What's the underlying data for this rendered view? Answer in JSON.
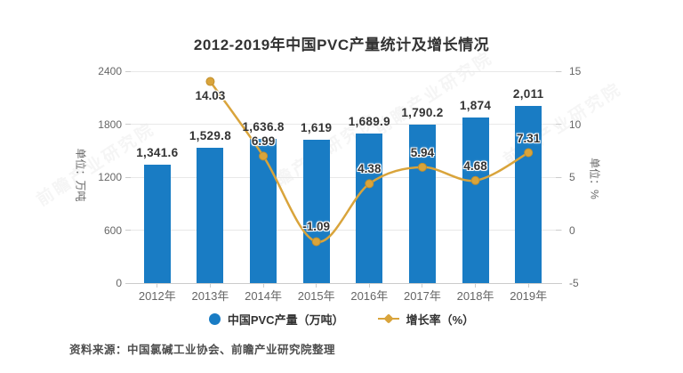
{
  "title": "2012-2019年中国PVC产量统计及增长情况",
  "source": "资料来源：中国氯碱工业协会、前瞻产业研究院整理",
  "watermark": "前瞻产业研究院",
  "colors": {
    "bar": "#197cc4",
    "line": "#d9a43b",
    "line_marker_stroke": "#c28f2c",
    "gridline": "#e8e8e8",
    "axis_line": "#cccccc",
    "label_text": "#333333",
    "tick_text": "#666666"
  },
  "chart_data": {
    "type": "bar",
    "subtype": "bar-line-combo",
    "categories": [
      "2012年",
      "2013年",
      "2014年",
      "2015年",
      "2016年",
      "2017年",
      "2018年",
      "2019年"
    ],
    "series": [
      {
        "name": "中国PVC产量（万吨）",
        "type": "bar",
        "axis": "left",
        "color": "#197cc4",
        "values": [
          1341.6,
          1529.8,
          1636.8,
          1619,
          1689.9,
          1790.2,
          1874,
          2011
        ],
        "labels": [
          "1,341.6",
          "1,529.8",
          "1,636.8",
          "1,619",
          "1,689.9",
          "1,790.2",
          "1,874",
          "2,011"
        ]
      },
      {
        "name": "增长率（%）",
        "type": "line",
        "axis": "right",
        "color": "#d9a43b",
        "values": [
          null,
          14.03,
          6.99,
          -1.09,
          4.38,
          5.94,
          4.68,
          7.31
        ],
        "labels": [
          null,
          "14.03",
          "6.99",
          "-1.09",
          "4.38",
          "5.94",
          "4.68",
          "7.31"
        ]
      }
    ],
    "left_axis": {
      "label": "单位：万吨",
      "min": 0,
      "max": 2400,
      "ticks": [
        0,
        600,
        1200,
        1800,
        2400
      ]
    },
    "right_axis": {
      "label": "单位：%",
      "min": -5,
      "max": 15,
      "ticks": [
        -5,
        0,
        5,
        10,
        15
      ]
    },
    "grid": "horizontal",
    "legend_position": "bottom"
  }
}
